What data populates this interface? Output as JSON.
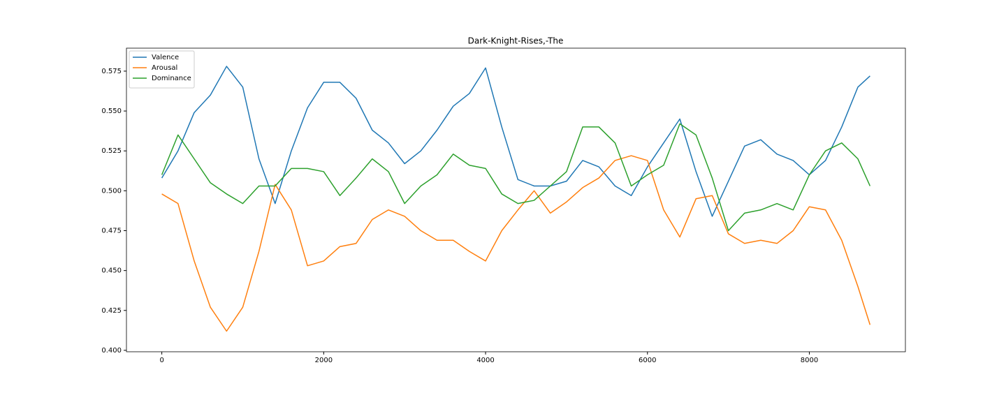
{
  "chart_data": {
    "type": "line",
    "title": "Dark-Knight-Rises,-The",
    "x": [
      0,
      200,
      400,
      600,
      800,
      1000,
      1200,
      1400,
      1600,
      1800,
      2000,
      2200,
      2400,
      2600,
      2800,
      3000,
      3200,
      3400,
      3600,
      3800,
      4000,
      4200,
      4400,
      4600,
      4800,
      5000,
      5200,
      5400,
      5600,
      5800,
      6000,
      6200,
      6400,
      6600,
      6800,
      7000,
      7200,
      7400,
      7600,
      7800,
      8000,
      8200,
      8400,
      8600,
      8750
    ],
    "series": [
      {
        "name": "Valence",
        "color": "#1f77b4",
        "values": [
          0.508,
          0.525,
          0.549,
          0.56,
          0.578,
          0.565,
          0.52,
          0.492,
          0.525,
          0.552,
          0.568,
          0.568,
          0.558,
          0.538,
          0.53,
          0.517,
          0.525,
          0.538,
          0.553,
          0.561,
          0.577,
          0.54,
          0.507,
          0.503,
          0.503,
          0.506,
          0.519,
          0.515,
          0.503,
          0.497,
          0.515,
          0.53,
          0.545,
          0.512,
          0.484,
          0.506,
          0.528,
          0.532,
          0.523,
          0.519,
          0.51,
          0.519,
          0.54,
          0.565,
          0.572
        ]
      },
      {
        "name": "Arousal",
        "color": "#ff7f0e",
        "values": [
          0.498,
          0.492,
          0.456,
          0.427,
          0.412,
          0.427,
          0.462,
          0.504,
          0.488,
          0.453,
          0.456,
          0.465,
          0.467,
          0.482,
          0.488,
          0.484,
          0.475,
          0.469,
          0.469,
          0.462,
          0.456,
          0.475,
          0.488,
          0.5,
          0.486,
          0.493,
          0.502,
          0.508,
          0.519,
          0.522,
          0.519,
          0.488,
          0.471,
          0.495,
          0.497,
          0.473,
          0.467,
          0.469,
          0.467,
          0.475,
          0.49,
          0.488,
          0.469,
          0.44,
          0.416
        ]
      },
      {
        "name": "Dominance",
        "color": "#2ca02c",
        "values": [
          0.51,
          0.535,
          0.52,
          0.505,
          0.498,
          0.492,
          0.503,
          0.503,
          0.514,
          0.514,
          0.512,
          0.497,
          0.508,
          0.52,
          0.512,
          0.492,
          0.503,
          0.51,
          0.523,
          0.516,
          0.514,
          0.498,
          0.492,
          0.494,
          0.503,
          0.512,
          0.54,
          0.54,
          0.53,
          0.503,
          0.51,
          0.516,
          0.542,
          0.535,
          0.508,
          0.475,
          0.486,
          0.488,
          0.492,
          0.488,
          0.51,
          0.525,
          0.53,
          0.52,
          0.503
        ]
      }
    ],
    "xlim": [
      -437,
      9187
    ],
    "xticks": [
      0,
      2000,
      4000,
      6000,
      8000
    ],
    "ylim": [
      0.3991,
      0.5894
    ],
    "yticks": [
      {
        "value": 0.4,
        "label": "0.400"
      },
      {
        "value": 0.425,
        "label": "0.425"
      },
      {
        "value": 0.45,
        "label": "0.450"
      },
      {
        "value": 0.475,
        "label": "0.475"
      },
      {
        "value": 0.5,
        "label": "0.500"
      },
      {
        "value": 0.525,
        "label": "0.525"
      },
      {
        "value": 0.55,
        "label": "0.550"
      },
      {
        "value": 0.575,
        "label": "0.575"
      }
    ],
    "legend": "upper left"
  }
}
